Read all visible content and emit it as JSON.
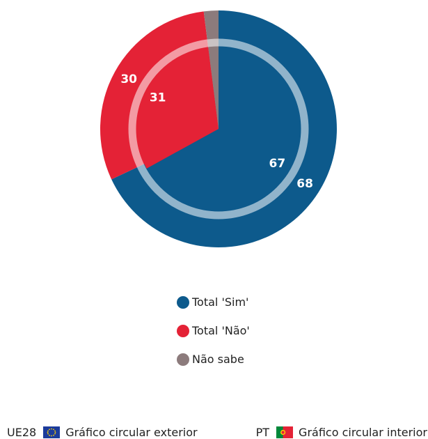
{
  "chart_data": {
    "type": "pie",
    "categories": [
      "Total 'Sim'",
      "Total 'Não'",
      "Não sabe"
    ],
    "colors": [
      "#0d5a8c",
      "#e42236",
      "#8c7b7c"
    ],
    "outer": {
      "values": [
        68,
        30,
        2
      ],
      "labels": [
        "68",
        "30",
        ""
      ]
    },
    "inner": {
      "values": [
        67,
        31,
        2
      ],
      "labels": [
        "67",
        "31",
        ""
      ]
    },
    "legend_position": "bottom-center"
  },
  "legend": {
    "items": [
      {
        "label": "Total 'Sim'",
        "color": "#0d5a8c"
      },
      {
        "label": "Total 'Não'",
        "color": "#e42236"
      },
      {
        "label": "Não sabe",
        "color": "#8c7b7c"
      }
    ]
  },
  "footer": {
    "left": {
      "code": "UE28",
      "text": "Gráfico circular exterior",
      "flag_icon": "eu-flag-icon"
    },
    "right": {
      "code": "PT",
      "text": "Gráfico circular interior",
      "flag_icon": "portugal-flag-icon"
    }
  }
}
